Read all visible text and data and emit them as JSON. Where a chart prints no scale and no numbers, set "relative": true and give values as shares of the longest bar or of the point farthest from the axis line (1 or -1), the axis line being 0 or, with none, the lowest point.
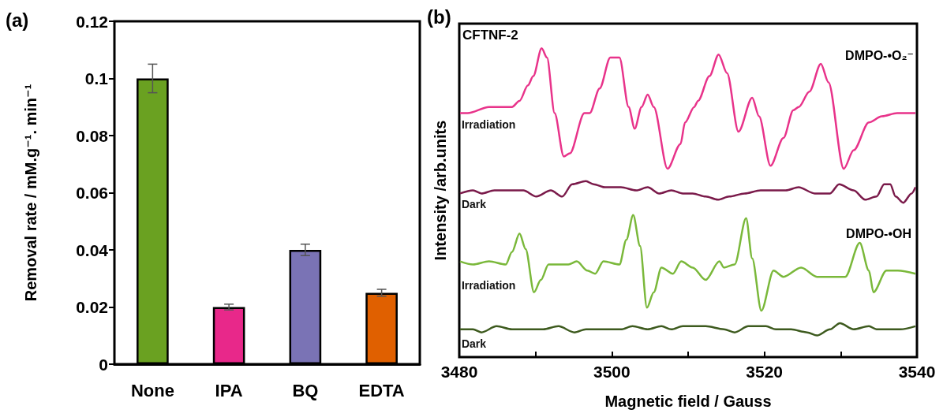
{
  "chart_data": [
    {
      "type": "bar",
      "title": "(a)",
      "ylabel": "Removal rate / mM.g⁻¹. min⁻¹",
      "categories": [
        "None",
        "IPA",
        "BQ",
        "EDTA"
      ],
      "values": [
        0.1,
        0.02,
        0.04,
        0.025
      ],
      "errors": [
        0.005,
        0.001,
        0.002,
        0.0012
      ],
      "colors": [
        "#6aa121",
        "#e8288a",
        "#7a73b5",
        "#e06000"
      ],
      "ylim": [
        0,
        0.12
      ],
      "yticks": [
        0,
        0.02,
        0.04,
        0.06,
        0.08,
        0.1,
        0.12
      ]
    },
    {
      "type": "line",
      "title": "(b)",
      "xlabel": "Magnetic field / Gauss",
      "ylabel": "Intensity /arb.units",
      "relative": true,
      "tick_labels": "x",
      "annotations": [
        "CFTNF-2",
        "DMPO-•O₂⁻",
        "DMPO-•OH"
      ],
      "xlim": [
        3480,
        3540
      ],
      "xticks": [
        3480,
        {
          "value": 3490,
          "label": null
        },
        3500,
        {
          "value": 3510,
          "label": null
        },
        3520,
        {
          "value": 3530,
          "label": null
        },
        3540
      ],
      "series": [
        {
          "name": "Irradiation",
          "color": "#e8338a",
          "x": [
            3480.1,
            3481.1,
            3483.9,
            3486.9,
            3487.9,
            3489.0,
            3489.7,
            3490.8,
            3491.5,
            3492.5,
            3493.7,
            3494.5,
            3496.4,
            3497.1,
            3498.4,
            3499.8,
            3501.0,
            3502.2,
            3503.0,
            3503.9,
            3504.7,
            3505.5,
            3507.3,
            3509.0,
            3509.6,
            3510.8,
            3511.3,
            3512.8,
            3514.0,
            3515.1,
            3516.6,
            3518.4,
            3519.3,
            3520.8,
            3522.5,
            3523.8,
            3524.5,
            3525.9,
            3527.4,
            3528.4,
            3530.4,
            3531.7,
            3533.7,
            3535.4,
            3537.4,
            3539.8
          ],
          "values": [
            0.79,
            0.79,
            0.81,
            0.81,
            0.83,
            0.88,
            0.91,
            1.0,
            0.97,
            0.79,
            0.65,
            0.66,
            0.79,
            0.79,
            0.87,
            0.97,
            0.97,
            0.81,
            0.74,
            0.81,
            0.85,
            0.81,
            0.61,
            0.69,
            0.76,
            0.81,
            0.83,
            0.91,
            0.98,
            0.92,
            0.73,
            0.84,
            0.78,
            0.62,
            0.71,
            0.8,
            0.81,
            0.86,
            0.95,
            0.89,
            0.61,
            0.67,
            0.76,
            0.78,
            0.79,
            0.79
          ]
        },
        {
          "name": "Dark",
          "color": "#7a1a4a",
          "x": [
            3480.1,
            3481.8,
            3482.9,
            3484.6,
            3485.9,
            3487.4,
            3488.4,
            3490.1,
            3492.0,
            3493.5,
            3494.8,
            3496.6,
            3497.6,
            3499.1,
            3501.2,
            3503.2,
            3504.7,
            3506.2,
            3507.8,
            3509.3,
            3510.6,
            3512.3,
            3513.9,
            3515.4,
            3517.4,
            3519.5,
            3521.5,
            3522.8,
            3524.5,
            3526.6,
            3528.6,
            3529.8,
            3531.7,
            3533.2,
            3534.7,
            3535.7,
            3536.5,
            3537.2,
            3538.2,
            3539.3,
            3539.8
          ],
          "values": [
            0.53,
            0.54,
            0.53,
            0.54,
            0.54,
            0.54,
            0.54,
            0.52,
            0.54,
            0.52,
            0.56,
            0.57,
            0.56,
            0.55,
            0.55,
            0.54,
            0.55,
            0.53,
            0.54,
            0.53,
            0.53,
            0.52,
            0.51,
            0.52,
            0.53,
            0.54,
            0.54,
            0.54,
            0.55,
            0.53,
            0.53,
            0.56,
            0.54,
            0.51,
            0.52,
            0.56,
            0.56,
            0.52,
            0.5,
            0.53,
            0.55
          ]
        },
        {
          "name": "Irradiation",
          "color": "#7ab83a",
          "x": [
            3480.1,
            3481.8,
            3483.9,
            3486.1,
            3486.9,
            3487.9,
            3488.7,
            3489.8,
            3490.7,
            3491.7,
            3494.3,
            3495.4,
            3496.8,
            3497.8,
            3498.9,
            3501.0,
            3501.9,
            3502.8,
            3503.7,
            3504.6,
            3505.5,
            3506.5,
            3508.0,
            3509.1,
            3510.6,
            3512.3,
            3514.1,
            3514.7,
            3516.1,
            3517.6,
            3518.4,
            3519.6,
            3521.2,
            3522.5,
            3524.8,
            3526.9,
            3528.6,
            3530.6,
            3532.5,
            3533.7,
            3534.3,
            3536.0,
            3537.5,
            3539.8
          ],
          "values": [
            0.31,
            0.3,
            0.31,
            0.3,
            0.34,
            0.4,
            0.35,
            0.21,
            0.25,
            0.3,
            0.3,
            0.31,
            0.28,
            0.27,
            0.31,
            0.3,
            0.38,
            0.46,
            0.36,
            0.16,
            0.21,
            0.29,
            0.27,
            0.31,
            0.29,
            0.25,
            0.31,
            0.29,
            0.3,
            0.45,
            0.32,
            0.15,
            0.28,
            0.26,
            0.29,
            0.26,
            0.26,
            0.26,
            0.37,
            0.28,
            0.21,
            0.28,
            0.28,
            0.27
          ]
        },
        {
          "name": "Dark",
          "color": "#3d5a1e",
          "x": [
            3480.1,
            3481.8,
            3482.9,
            3484.9,
            3486.9,
            3488.9,
            3491.0,
            3493.0,
            3495.1,
            3496.6,
            3499.1,
            3501.2,
            3502.7,
            3504.7,
            3506.5,
            3507.8,
            3509.3,
            3510.6,
            3512.3,
            3514.7,
            3516.1,
            3517.9,
            3520.2,
            3521.5,
            3523.5,
            3525.6,
            3526.9,
            3528.6,
            3529.9,
            3531.7,
            3533.7,
            3534.7,
            3535.7,
            3537.8,
            3539.8
          ],
          "values": [
            0.09,
            0.09,
            0.08,
            0.1,
            0.09,
            0.09,
            0.09,
            0.1,
            0.08,
            0.09,
            0.09,
            0.09,
            0.1,
            0.09,
            0.1,
            0.09,
            0.1,
            0.1,
            0.1,
            0.09,
            0.08,
            0.1,
            0.1,
            0.09,
            0.09,
            0.08,
            0.07,
            0.09,
            0.11,
            0.09,
            0.1,
            0.09,
            0.09,
            0.09,
            0.1
          ]
        }
      ]
    }
  ]
}
